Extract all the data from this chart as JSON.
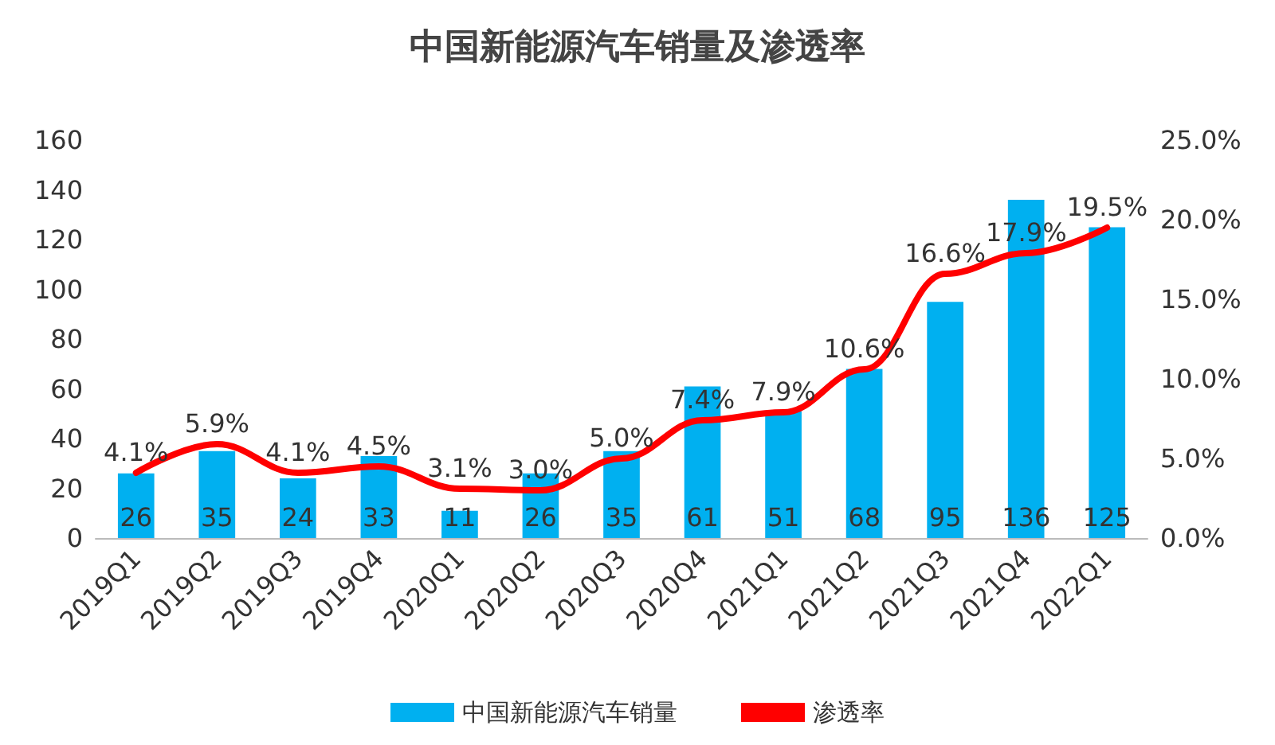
{
  "chart_data": {
    "type": "bar",
    "title": "中国新能源汽车销量及渗透率",
    "categories": [
      "2019Q1",
      "2019Q2",
      "2019Q3",
      "2019Q4",
      "2020Q1",
      "2020Q2",
      "2020Q3",
      "2020Q4",
      "2021Q1",
      "2021Q2",
      "2021Q3",
      "2021Q4",
      "2022Q1"
    ],
    "series": [
      {
        "name": "中国新能源汽车销量",
        "color": "#00b0f0",
        "values": [
          26,
          35,
          24,
          33,
          11,
          26,
          35,
          61,
          51,
          68,
          95,
          136,
          125
        ],
        "value_labels": [
          "26",
          "35",
          "24",
          "33",
          "11",
          "26",
          "35",
          "61",
          "51",
          "68",
          "95",
          "136",
          "125"
        ]
      },
      {
        "name": "渗透率",
        "type": "line",
        "axis": "y2",
        "color": "#ff0000",
        "values": [
          4.1,
          5.9,
          4.1,
          4.5,
          3.1,
          3.0,
          5.0,
          7.4,
          7.9,
          10.6,
          16.6,
          17.9,
          19.5
        ],
        "value_labels": [
          "4.1%",
          "5.9%",
          "4.1%",
          "4.5%",
          "3.1%",
          "3.0%",
          "5.0%",
          "7.4%",
          "7.9%",
          "10.6%",
          "16.6%",
          "17.9%",
          "19.5%"
        ]
      }
    ],
    "ylim": [
      0,
      160
    ],
    "yticks": [
      0,
      20,
      40,
      60,
      80,
      100,
      120,
      140,
      160
    ],
    "y2lim": [
      0,
      25
    ],
    "y2ticks": [
      {
        "value": 0,
        "label": "0.0%"
      },
      {
        "value": 5,
        "label": "5.0%"
      },
      {
        "value": 10,
        "label": "10.0%"
      },
      {
        "value": 15,
        "label": "15.0%"
      },
      {
        "value": 20,
        "label": "20.0%"
      },
      {
        "value": 25,
        "label": "25.0%"
      }
    ],
    "grid": false,
    "legend": "bottom",
    "marker": "none",
    "line_style": "solid"
  }
}
